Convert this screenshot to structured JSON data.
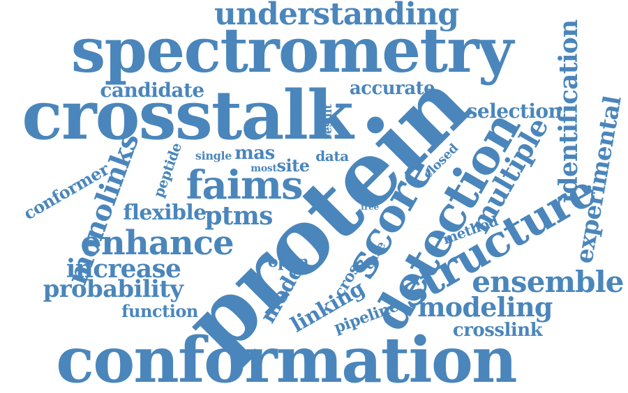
{
  "words": {
    "understanding": "understanding",
    "spectrometry": "spectrometry",
    "crosstalk": "crosstalk",
    "candidate": "candidate",
    "accurate": "accurate",
    "selection": "selection",
    "identification": "identification",
    "experimental": "experimental",
    "protein": "protein",
    "result": "result",
    "conformer": "conformer",
    "monolinks": "monolinks",
    "peptide": "peptide",
    "single": "single",
    "mas": "mas",
    "most": "most",
    "site": "site",
    "data": "data",
    "closed": "closed",
    "faims": "faims",
    "score": "score",
    "detection": "detection",
    "multiple": "multiple",
    "structure": "structure",
    "flexible": "flexible",
    "ptms": "ptms",
    "free": "free",
    "method": "method",
    "enhance": "enhance",
    "increase": "increase",
    "open": "open",
    "case": "case",
    "cross": "cross",
    "model": "model",
    "probability": "probability",
    "ensemble": "ensemble",
    "function": "function",
    "linking": "linking",
    "pipeline": "pipeline",
    "modeling": "modeling",
    "crosslink": "crosslink",
    "conformation": "conformation"
  },
  "colors": {
    "word": "#4a86bb",
    "background": "#ffffff"
  }
}
